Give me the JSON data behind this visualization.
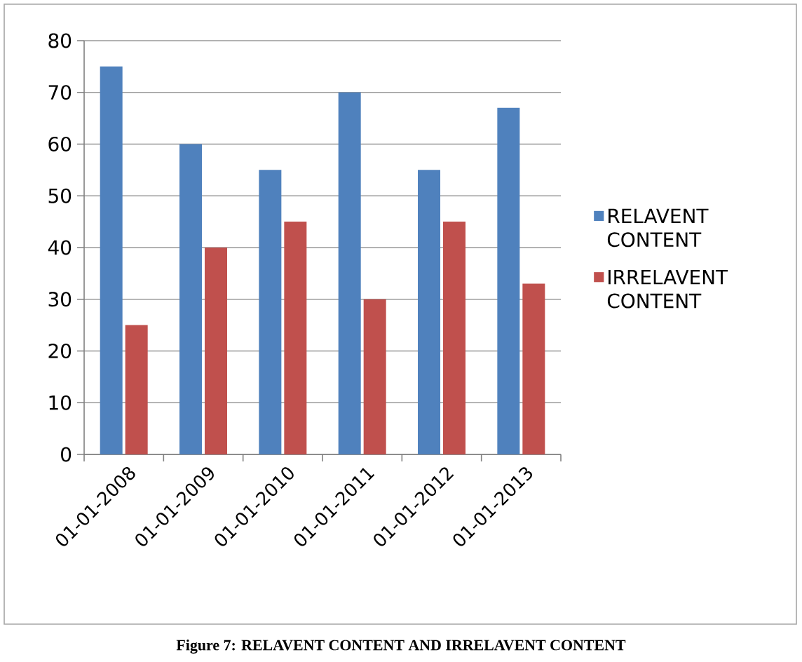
{
  "chart_data": {
    "type": "bar",
    "categories": [
      "01-01-2008",
      "01-01-2009",
      "01-01-2010",
      "01-01-2011",
      "01-01-2012",
      "01-01-2013"
    ],
    "series": [
      {
        "name": "RELAVENT CONTENT",
        "color": "#4f81bd",
        "values": [
          75,
          60,
          55,
          70,
          55,
          67
        ]
      },
      {
        "name": "IRRELAVENT CONTENT",
        "color": "#c0504d",
        "values": [
          25,
          40,
          45,
          30,
          45,
          33
        ]
      }
    ],
    "ylim": [
      0,
      80
    ],
    "yticks": [
      0,
      10,
      20,
      30,
      40,
      50,
      60,
      70,
      80
    ],
    "grid": "y",
    "legend": "right",
    "annotations": [
      "Figure 7: RELAVENT CONTENT AND IRRELAVENT CONTENT"
    ]
  }
}
